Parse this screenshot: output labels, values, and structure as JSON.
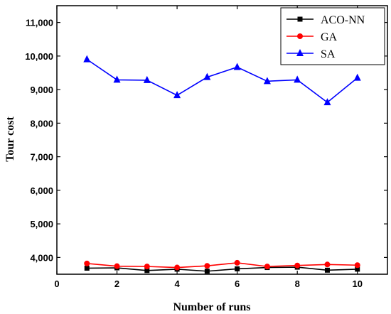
{
  "chart_data": {
    "type": "line",
    "title": "",
    "xlabel": "Number of runs",
    "ylabel": "Tour cost",
    "xlim": [
      0,
      11
    ],
    "ylim": [
      3500,
      11500
    ],
    "x_ticks": [
      0,
      2,
      4,
      6,
      8,
      10
    ],
    "x_tick_labels": [
      "0",
      "2",
      "4",
      "6",
      "8",
      "10"
    ],
    "y_ticks": [
      4000,
      5000,
      6000,
      7000,
      8000,
      9000,
      10000,
      11000
    ],
    "y_tick_labels": [
      "4,000",
      "5,000",
      "6,000",
      "7,000",
      "8,000",
      "9,000",
      "10,000",
      "11,000"
    ],
    "legend_position": "top-right",
    "grid": false,
    "x": [
      1,
      2,
      3,
      4,
      5,
      6,
      7,
      8,
      9,
      10
    ],
    "series": [
      {
        "name": "ACO-NN",
        "color": "#000000",
        "marker": "square",
        "values": [
          3680,
          3690,
          3610,
          3650,
          3590,
          3660,
          3700,
          3710,
          3620,
          3650
        ]
      },
      {
        "name": "GA",
        "color": "#ff0000",
        "marker": "circle",
        "values": [
          3820,
          3740,
          3730,
          3700,
          3750,
          3840,
          3730,
          3760,
          3790,
          3770
        ]
      },
      {
        "name": "SA",
        "color": "#0000ff",
        "marker": "triangle",
        "values": [
          9900,
          9290,
          9280,
          8830,
          9370,
          9670,
          9250,
          9290,
          8620,
          9350
        ]
      }
    ]
  }
}
